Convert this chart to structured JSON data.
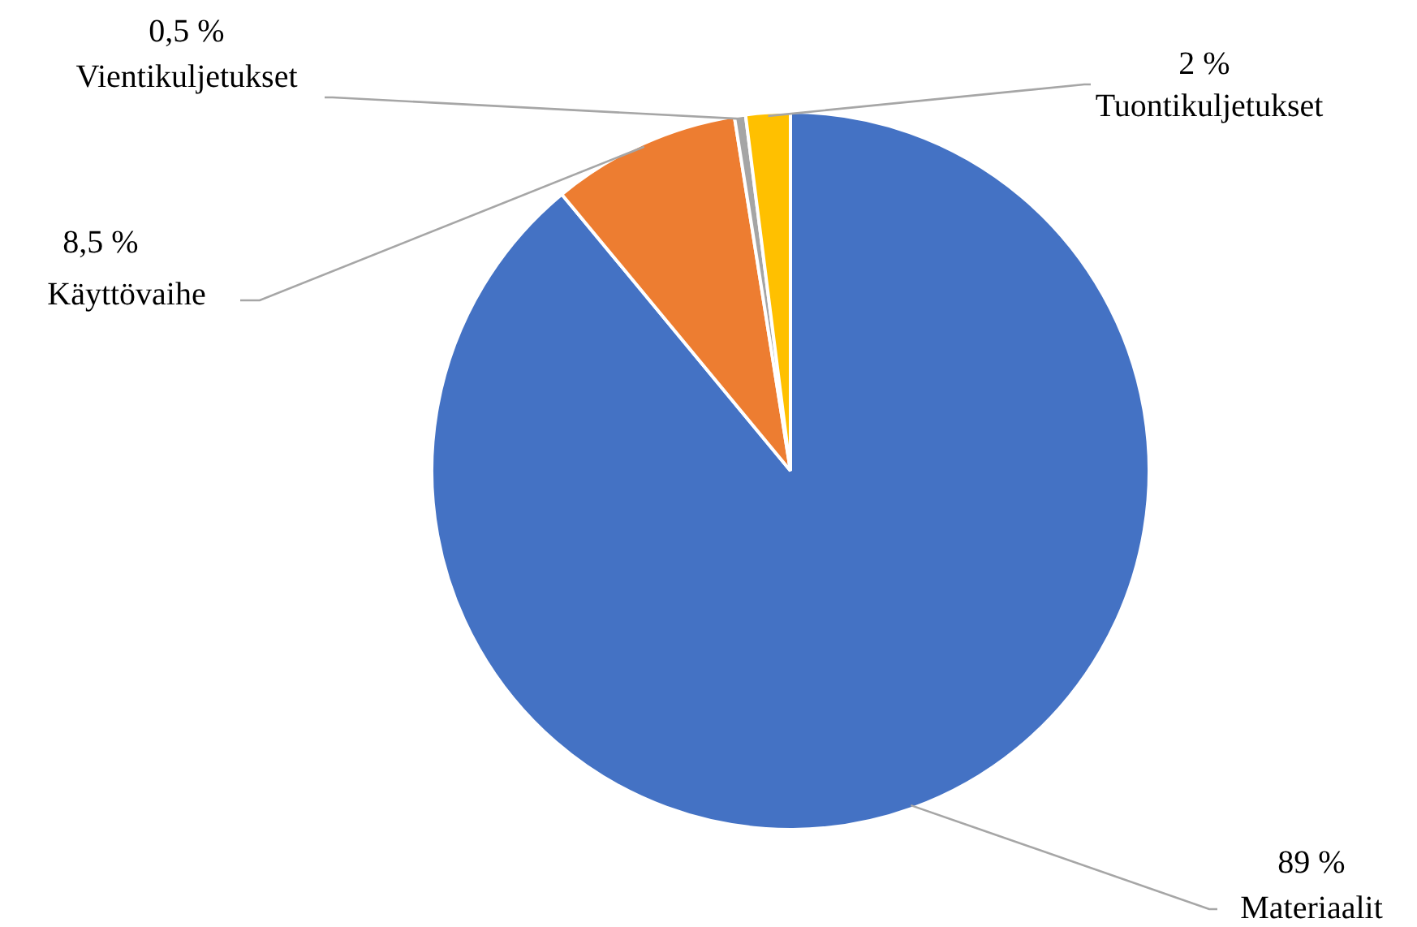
{
  "chart_data": {
    "type": "pie",
    "categories": [
      "Materiaalit",
      "Käyttövaihe",
      "Vientikuljetukset",
      "Tuontikuljetukset"
    ],
    "values": [
      89,
      8.5,
      0.5,
      2
    ],
    "colors": [
      "#4472c4",
      "#ed7d31",
      "#a5a5a5",
      "#ffc000"
    ],
    "value_labels": [
      "89 %",
      "8,5 %",
      "0,5 %",
      "2 %"
    ],
    "legend": false
  }
}
